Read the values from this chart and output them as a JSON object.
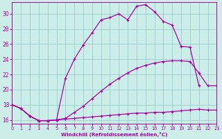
{
  "bg_color": "#cceee8",
  "line_color": "#aa00aa",
  "grid_color": "#99cccc",
  "xlabel": "Windchill (Refroidissement éolien,°C)",
  "xlim": [
    0,
    23
  ],
  "ylim": [
    15.5,
    31.5
  ],
  "yticks": [
    16,
    18,
    20,
    22,
    24,
    26,
    28,
    30
  ],
  "xticks": [
    0,
    1,
    2,
    3,
    4,
    5,
    6,
    7,
    8,
    9,
    10,
    11,
    12,
    13,
    14,
    15,
    16,
    17,
    18,
    19,
    20,
    21,
    22,
    23
  ],
  "curve_bottom_x": [
    0,
    1,
    2,
    3,
    4,
    5,
    6,
    7,
    8,
    9,
    10,
    11,
    12,
    13,
    14,
    15,
    16,
    17,
    18,
    19,
    20,
    21,
    22,
    23
  ],
  "curve_bottom_y": [
    18.0,
    17.5,
    16.5,
    15.9,
    15.9,
    16.0,
    16.1,
    16.2,
    16.3,
    16.4,
    16.5,
    16.6,
    16.7,
    16.8,
    16.9,
    16.9,
    17.0,
    17.0,
    17.1,
    17.2,
    17.3,
    17.4,
    17.3,
    17.3
  ],
  "curve_mid_x": [
    0,
    1,
    2,
    3,
    4,
    5,
    6,
    7,
    8,
    9,
    10,
    11,
    12,
    13,
    14,
    15,
    16,
    17,
    18,
    19,
    20,
    21,
    22,
    23
  ],
  "curve_mid_y": [
    18.0,
    17.5,
    16.5,
    15.9,
    15.9,
    16.0,
    16.2,
    17.0,
    17.8,
    18.8,
    19.8,
    20.7,
    21.5,
    22.2,
    22.8,
    23.2,
    23.5,
    23.7,
    23.8,
    23.8,
    23.7,
    22.2,
    20.5,
    20.5
  ],
  "curve_top_x": [
    0,
    1,
    2,
    3,
    4,
    5,
    6,
    7,
    8,
    9,
    10,
    11,
    12,
    13,
    14,
    15,
    16,
    17,
    18,
    19,
    20,
    21
  ],
  "curve_top_y": [
    18.0,
    17.5,
    16.5,
    15.9,
    15.9,
    16.0,
    21.5,
    24.0,
    25.9,
    27.5,
    29.2,
    29.5,
    30.0,
    29.2,
    31.0,
    31.2,
    30.3,
    29.0,
    28.5,
    25.7,
    25.6,
    20.5
  ]
}
